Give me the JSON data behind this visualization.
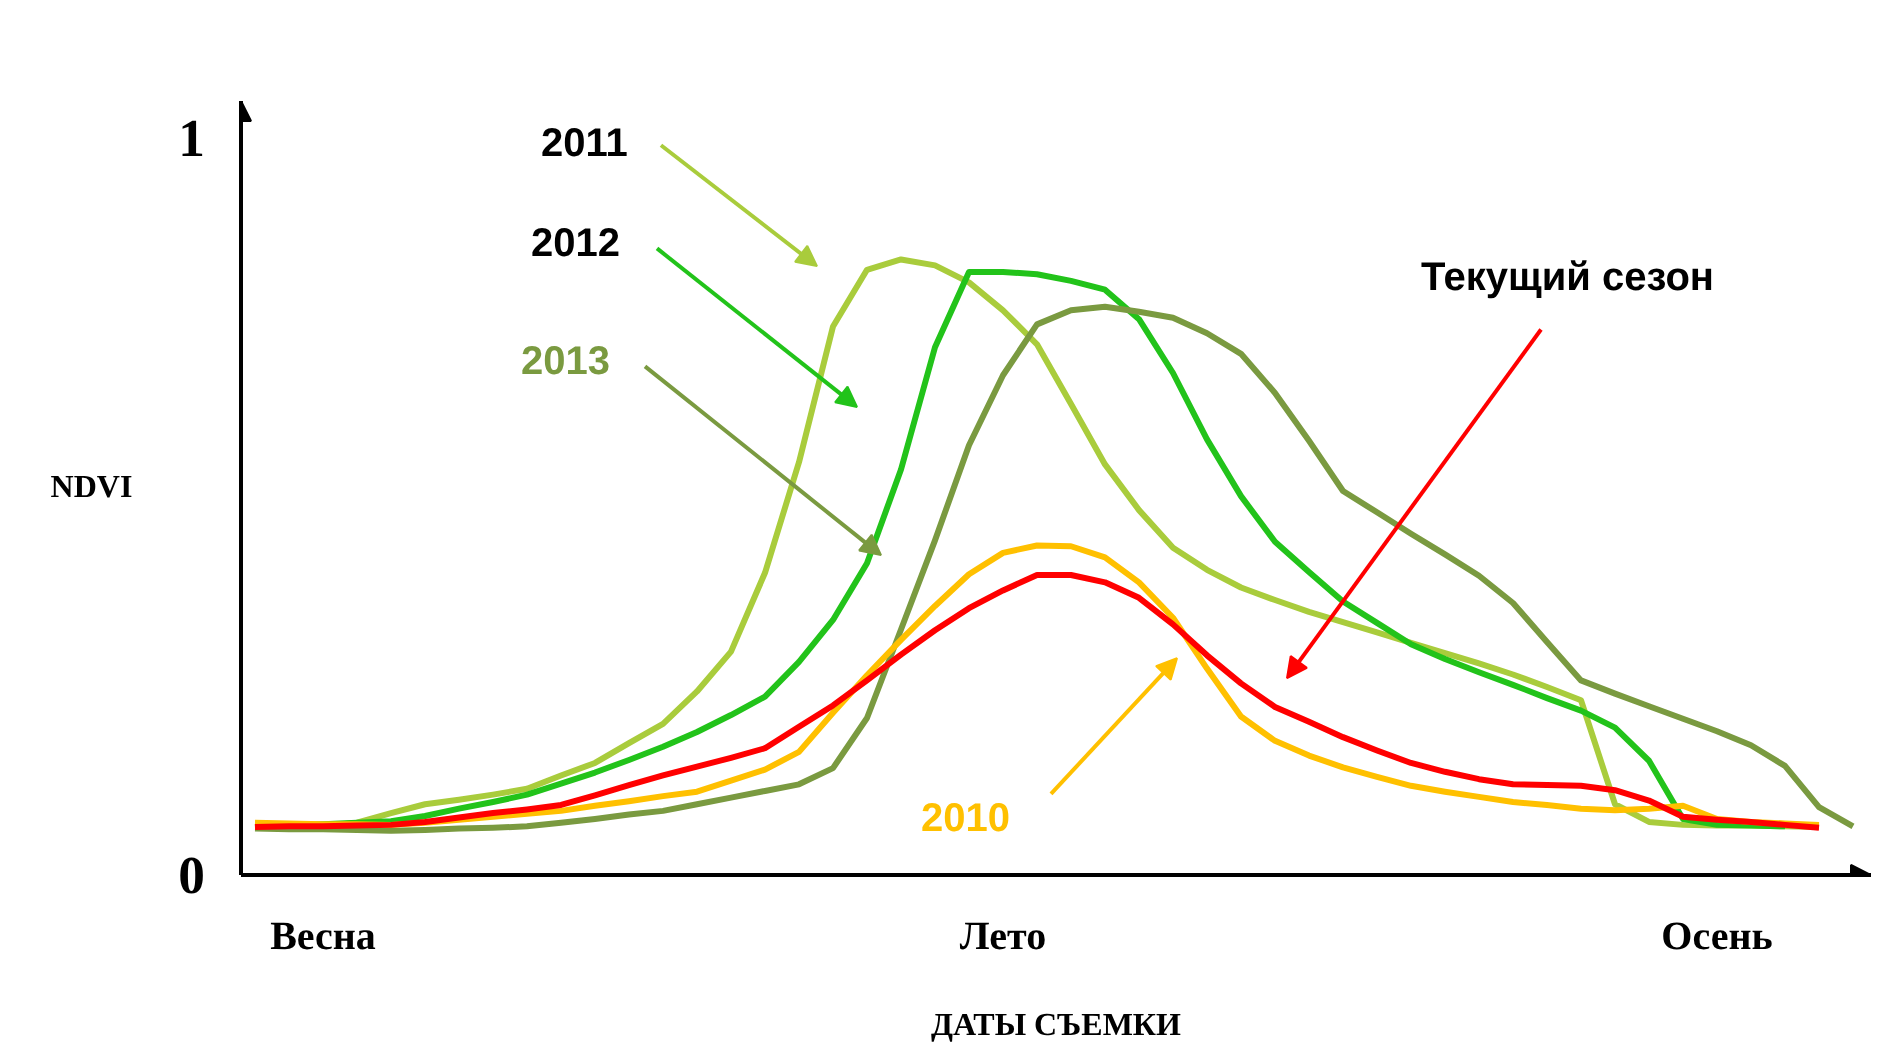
{
  "chart_data": {
    "type": "line",
    "xlabel": "ДАТЫ СЪЕМКИ",
    "ylabel": "NDVI",
    "categories": [
      null,
      null,
      "Весна",
      null,
      null,
      null,
      null,
      null,
      null,
      null,
      null,
      null,
      null,
      null,
      null,
      null,
      null,
      null,
      null,
      null,
      null,
      null,
      "Лето",
      null,
      null,
      null,
      null,
      null,
      null,
      null,
      null,
      null,
      null,
      null,
      null,
      null,
      null,
      null,
      null,
      null,
      null,
      null,
      null,
      "Осень",
      null,
      null,
      null,
      null
    ],
    "ylim": [
      0,
      1.05
    ],
    "yticks": [
      0,
      1
    ],
    "series": [
      {
        "name": "2011",
        "color": "#a9cc3c",
        "values": [
          0.068,
          0.067,
          0.066,
          0.071,
          0.084,
          0.096,
          0.102,
          0.109,
          0.117,
          0.135,
          0.152,
          0.179,
          0.205,
          0.249,
          0.303,
          0.41,
          0.56,
          0.744,
          0.821,
          0.835,
          0.827,
          0.804,
          0.766,
          0.72,
          0.639,
          0.557,
          0.495,
          0.444,
          0.414,
          0.39,
          0.373,
          0.357,
          0.343,
          0.329,
          0.315,
          0.301,
          0.287,
          0.272,
          0.255,
          0.237,
          0.096,
          0.072,
          0.068,
          0.067,
          0.067,
          0.066,
          0.065,
          null
        ]
      },
      {
        "name": "2012",
        "color": "#22c31a",
        "values": [
          0.065,
          0.067,
          0.069,
          0.071,
          0.073,
          0.08,
          0.09,
          0.099,
          0.109,
          0.124,
          0.139,
          0.156,
          0.174,
          0.194,
          0.217,
          0.242,
          0.289,
          0.346,
          0.423,
          0.55,
          0.716,
          0.818,
          0.818,
          0.815,
          0.806,
          0.794,
          0.754,
          0.681,
          0.591,
          0.514,
          0.452,
          0.411,
          0.371,
          0.342,
          0.313,
          0.293,
          0.275,
          0.258,
          0.24,
          0.223,
          0.2,
          0.155,
          0.076,
          0.068,
          0.067,
          0.066,
          null,
          null
        ]
      },
      {
        "name": "2013",
        "color": "#7a9a40",
        "values": [
          0.063,
          0.062,
          0.062,
          0.061,
          0.06,
          0.061,
          0.063,
          0.064,
          0.066,
          0.071,
          0.076,
          0.082,
          0.087,
          0.096,
          0.105,
          0.114,
          0.123,
          0.145,
          0.213,
          0.333,
          0.454,
          0.583,
          0.678,
          0.747,
          0.766,
          0.771,
          0.764,
          0.756,
          0.735,
          0.707,
          0.654,
          0.589,
          0.521,
          0.492,
          0.463,
          0.435,
          0.406,
          0.369,
          0.316,
          0.264,
          0.246,
          0.229,
          0.212,
          0.195,
          0.176,
          0.148,
          0.092,
          0.066
        ]
      },
      {
        "name": "2010",
        "color": "#ffc000",
        "values": [
          0.071,
          0.07,
          0.069,
          0.069,
          0.068,
          0.071,
          0.075,
          0.079,
          0.083,
          0.087,
          0.094,
          0.1,
          0.107,
          0.113,
          0.128,
          0.143,
          0.167,
          0.22,
          0.271,
          0.319,
          0.365,
          0.408,
          0.437,
          0.447,
          0.446,
          0.431,
          0.397,
          0.349,
          0.28,
          0.215,
          0.182,
          0.162,
          0.146,
          0.133,
          0.121,
          0.113,
          0.106,
          0.099,
          0.095,
          0.09,
          0.088,
          0.09,
          0.094,
          0.076,
          0.072,
          0.07,
          0.068,
          null
        ]
      },
      {
        "name": "Текущий сезон",
        "color": "#ff0000",
        "values": [
          0.065,
          0.066,
          0.066,
          0.067,
          0.068,
          0.072,
          0.078,
          0.084,
          0.089,
          0.095,
          0.108,
          0.122,
          0.135,
          0.147,
          0.159,
          0.172,
          0.201,
          0.23,
          0.264,
          0.299,
          0.332,
          0.362,
          0.386,
          0.407,
          0.407,
          0.397,
          0.376,
          0.34,
          0.298,
          0.26,
          0.228,
          0.208,
          0.187,
          0.169,
          0.152,
          0.14,
          0.13,
          0.123,
          0.122,
          0.121,
          0.115,
          0.101,
          0.079,
          0.075,
          0.072,
          0.068,
          0.064,
          null
        ]
      }
    ]
  }
}
